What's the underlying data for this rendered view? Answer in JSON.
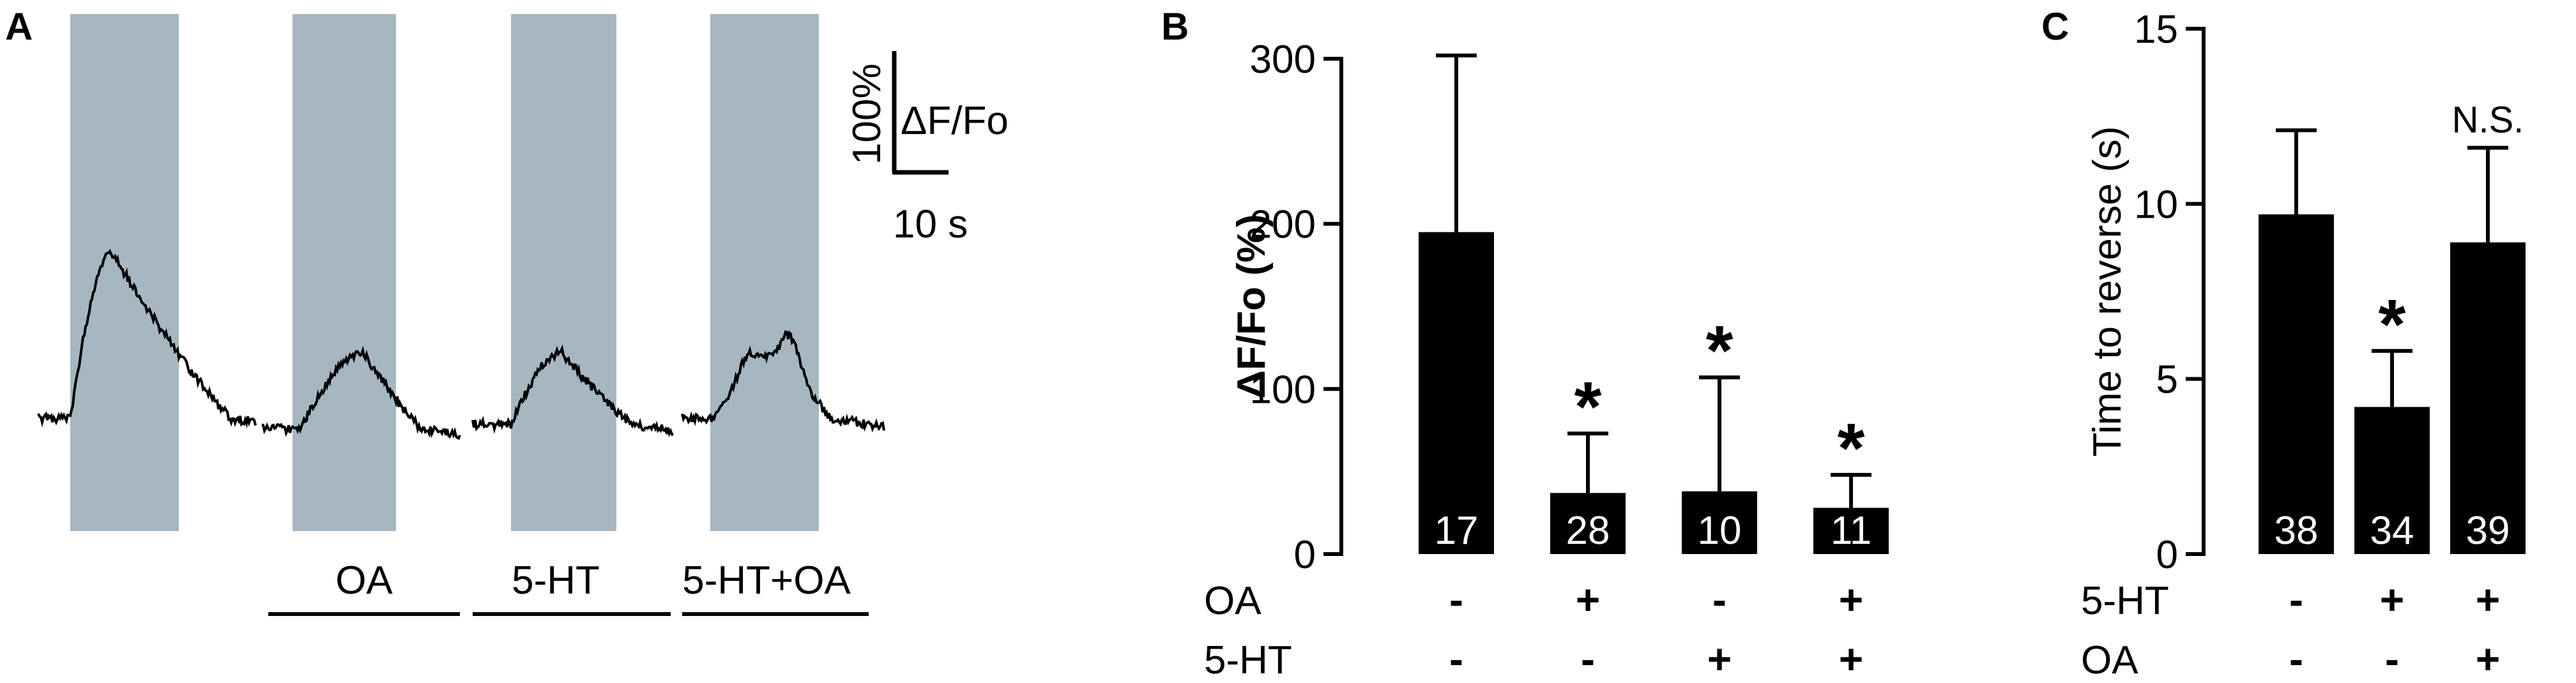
{
  "panels": {
    "a": {
      "letter": "A",
      "traces": [
        {
          "condition": ""
        },
        {
          "condition": "OA"
        },
        {
          "condition": "5-HT"
        },
        {
          "condition": "5-HT+OA"
        }
      ],
      "scale_bar": {
        "y_label": "100%",
        "y_unit": "ΔF/Fo",
        "x_label": "10 s"
      }
    },
    "b": {
      "letter": "B"
    },
    "c": {
      "letter": "C"
    }
  },
  "chart_data": [
    {
      "panel": "B",
      "type": "bar",
      "ylabel": "ΔF/Fo (%)",
      "ylim": [
        0,
        300
      ],
      "yticks": [
        0,
        100,
        200,
        300
      ],
      "values": [
        195,
        37,
        38,
        28
      ],
      "error_upper": [
        302,
        73,
        107,
        48
      ],
      "n_labels": [
        "17",
        "28",
        "10",
        "11"
      ],
      "significance": [
        "",
        "*",
        "*",
        "*"
      ],
      "conditions": [
        {
          "name": "OA",
          "values": [
            "-",
            "+",
            "-",
            "+"
          ]
        },
        {
          "name": "5-HT",
          "values": [
            "-",
            "-",
            "+",
            "+"
          ]
        }
      ]
    },
    {
      "panel": "C",
      "type": "bar",
      "ylabel": "Time to reverse (s)",
      "ylim": [
        0,
        15
      ],
      "yticks": [
        0,
        5,
        10,
        15
      ],
      "values": [
        9.7,
        4.2,
        8.9
      ],
      "error_upper": [
        12.1,
        5.8,
        11.6
      ],
      "n_labels": [
        "38",
        "34",
        "39"
      ],
      "significance": [
        "",
        "*",
        "N.S."
      ],
      "conditions": [
        {
          "name": "5-HT",
          "values": [
            "-",
            "+",
            "+"
          ]
        },
        {
          "name": "OA",
          "values": [
            "-",
            "-",
            "+"
          ]
        }
      ]
    }
  ],
  "colors": {
    "bar": "#000000",
    "stim_shading": "#a6b7c2",
    "text_on_bar": "#ffffff"
  }
}
